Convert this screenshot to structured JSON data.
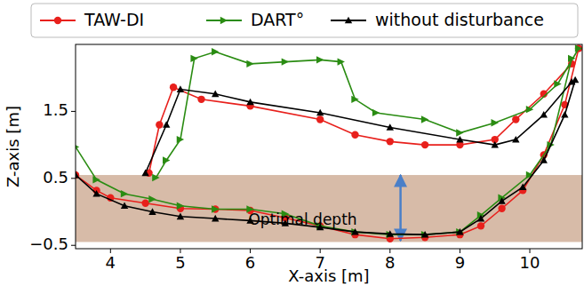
{
  "chart_data": {
    "type": "line",
    "x_label": "X-axis [m]",
    "y_label": "Z-axis [m]",
    "xlim": [
      3.5,
      10.75
    ],
    "ylim": [
      -0.55,
      2.5
    ],
    "xticks": [
      4,
      5,
      6,
      7,
      8,
      9,
      10
    ],
    "yticks": [
      {
        "value": -0.5,
        "label": "−0.5"
      },
      0.5,
      1.5
    ],
    "legend": "top",
    "band": [
      -0.45,
      0.55
    ],
    "arrow": {
      "x": 8.15,
      "y": [
        -0.43,
        0.55
      ]
    },
    "annotations": [
      {
        "text": "Optimal depth",
        "x": 6.75,
        "y": -0.13
      }
    ],
    "series": [
      {
        "name": "TAW-DI",
        "color": "#e8201c",
        "marker": "circle",
        "x": [
          3.5,
          3.8,
          4,
          4.5,
          5,
          5.5,
          6,
          6.5,
          7,
          7.5,
          8,
          8.5,
          9,
          9.3,
          9.6,
          9.9,
          10.2,
          10.5,
          10.7,
          null,
          4.55,
          4.7,
          4.9,
          5.3,
          6,
          7,
          7.5,
          8,
          8.5,
          9,
          9.5,
          9.8,
          10.2,
          10.6
        ],
        "values": [
          0.55,
          0.32,
          0.21,
          0.13,
          0.05,
          0.04,
          0.02,
          -0.09,
          -0.21,
          -0.34,
          -0.4,
          -0.38,
          -0.34,
          -0.21,
          0.05,
          0.32,
          0.85,
          1.6,
          2.44,
          null,
          0.58,
          1.3,
          1.86,
          1.68,
          1.58,
          1.38,
          1.15,
          1.05,
          1.0,
          1.0,
          1.08,
          1.38,
          1.76,
          2.21
        ]
      },
      {
        "name": "DART°",
        "color": "#2a8c12",
        "marker": "triangle-right",
        "x": [
          3.5,
          3.8,
          4.2,
          4.6,
          5,
          5.5,
          6,
          6.5,
          7,
          7.5,
          8,
          8.5,
          9,
          9.3,
          9.6,
          10,
          10.3,
          10.6,
          null,
          4.65,
          4.8,
          5.0,
          5.2,
          5.5,
          6,
          6.5,
          7,
          7.3,
          7.5,
          7.8,
          8.5,
          9,
          9.5,
          10,
          10.4,
          10.7
        ],
        "values": [
          0.97,
          0.48,
          0.27,
          0.19,
          0.09,
          0.04,
          0.04,
          -0.03,
          -0.21,
          -0.3,
          -0.34,
          -0.34,
          -0.3,
          -0.05,
          0.21,
          0.55,
          1.0,
          2.29,
          null,
          0.51,
          0.77,
          1.08,
          2.29,
          2.39,
          2.21,
          2.24,
          2.27,
          2.24,
          1.68,
          1.48,
          1.38,
          1.18,
          1.33,
          1.53,
          1.91,
          2.44
        ]
      },
      {
        "name": "without disturbance",
        "color": "#000000",
        "marker": "triangle-up",
        "x": [
          3.5,
          3.8,
          4.2,
          4.6,
          5,
          5.5,
          6,
          6.5,
          7,
          7.5,
          8,
          8.5,
          9,
          9.3,
          9.6,
          9.9,
          10.2,
          10.5,
          10.65,
          null,
          4.5,
          4.8,
          5.0,
          5.5,
          6,
          7,
          8,
          9,
          9.5,
          9.8,
          10.2,
          10.6
        ],
        "values": [
          0.55,
          0.27,
          0.09,
          0.0,
          -0.07,
          -0.1,
          -0.13,
          -0.17,
          -0.23,
          -0.3,
          -0.33,
          -0.34,
          -0.3,
          -0.1,
          0.16,
          0.37,
          0.77,
          1.45,
          1.97,
          null,
          0.58,
          1.3,
          1.83,
          1.76,
          1.64,
          1.48,
          1.26,
          1.08,
          1.0,
          1.08,
          1.45,
          1.94
        ]
      }
    ]
  }
}
